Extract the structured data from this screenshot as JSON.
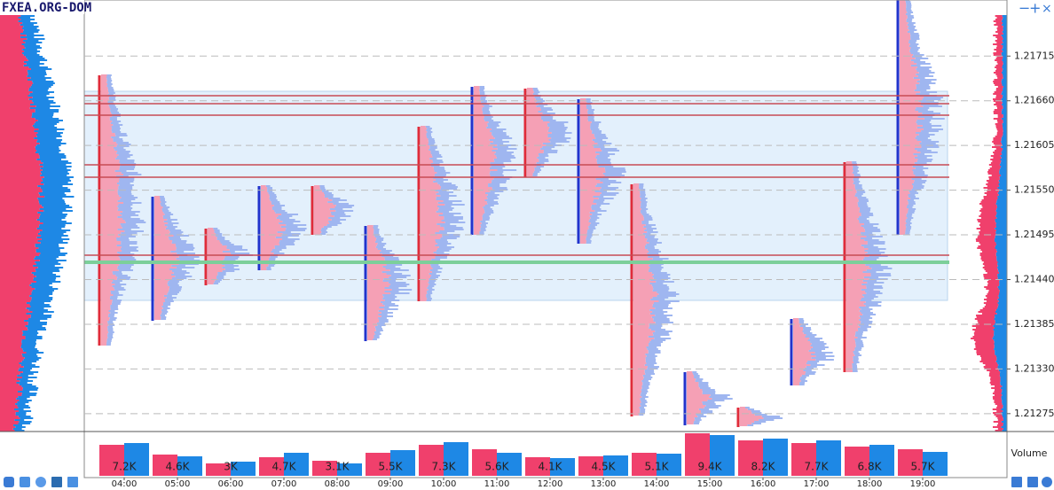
{
  "logo": "FXEA.ORG-DOM",
  "price_axis": {
    "ylim": [
      1.21253,
      1.21784
    ],
    "yticks": [
      1.21715,
      {
        "value": 1.2166,
        "label": "1.21660"
      },
      1.21605,
      {
        "value": 1.2155,
        "label": "1.21550"
      },
      1.21495,
      {
        "value": 1.2144,
        "label": "1.21440"
      },
      1.21385,
      {
        "value": 1.2133,
        "label": "1.21330"
      },
      1.21275
    ]
  },
  "chart_data": {
    "type": "bar",
    "title": "Volume",
    "categories": [
      "04:00",
      "05:00",
      "06:00",
      "07:00",
      "08:00",
      "09:00",
      "10:00",
      "11:00",
      "12:00",
      "13:00",
      "14:00",
      "15:00",
      "16:00",
      "17:00",
      "18:00",
      "19:00"
    ],
    "series": [
      {
        "color": "#f0406c",
        "values": [
          3500,
          2400,
          1400,
          2100,
          1700,
          2600,
          3500,
          3000,
          2100,
          2200,
          2600,
          4800,
          4000,
          3700,
          3300,
          3000
        ]
      },
      {
        "color": "#1e88e5",
        "values": [
          3700,
          2200,
          1600,
          2600,
          1400,
          2900,
          3800,
          2600,
          2000,
          2300,
          2500,
          4600,
          4200,
          4000,
          3500,
          2700
        ]
      }
    ],
    "totals": [
      7200,
      4600,
      3000,
      4700,
      3100,
      5500,
      7300,
      5600,
      4100,
      4500,
      5100,
      9400,
      8200,
      7700,
      6800,
      5700
    ],
    "value_labels": [
      "7.2K",
      "4.6K",
      "3K",
      "4.7K",
      "3.1K",
      "5.5K",
      "7.3K",
      "5.6K",
      "4.1K",
      "4.5K",
      "5.1K",
      "9.4K",
      "8.2K",
      "7.7K",
      "6.8K",
      "5.7K"
    ],
    "ylim": [
      0,
      5000
    ]
  }
}
